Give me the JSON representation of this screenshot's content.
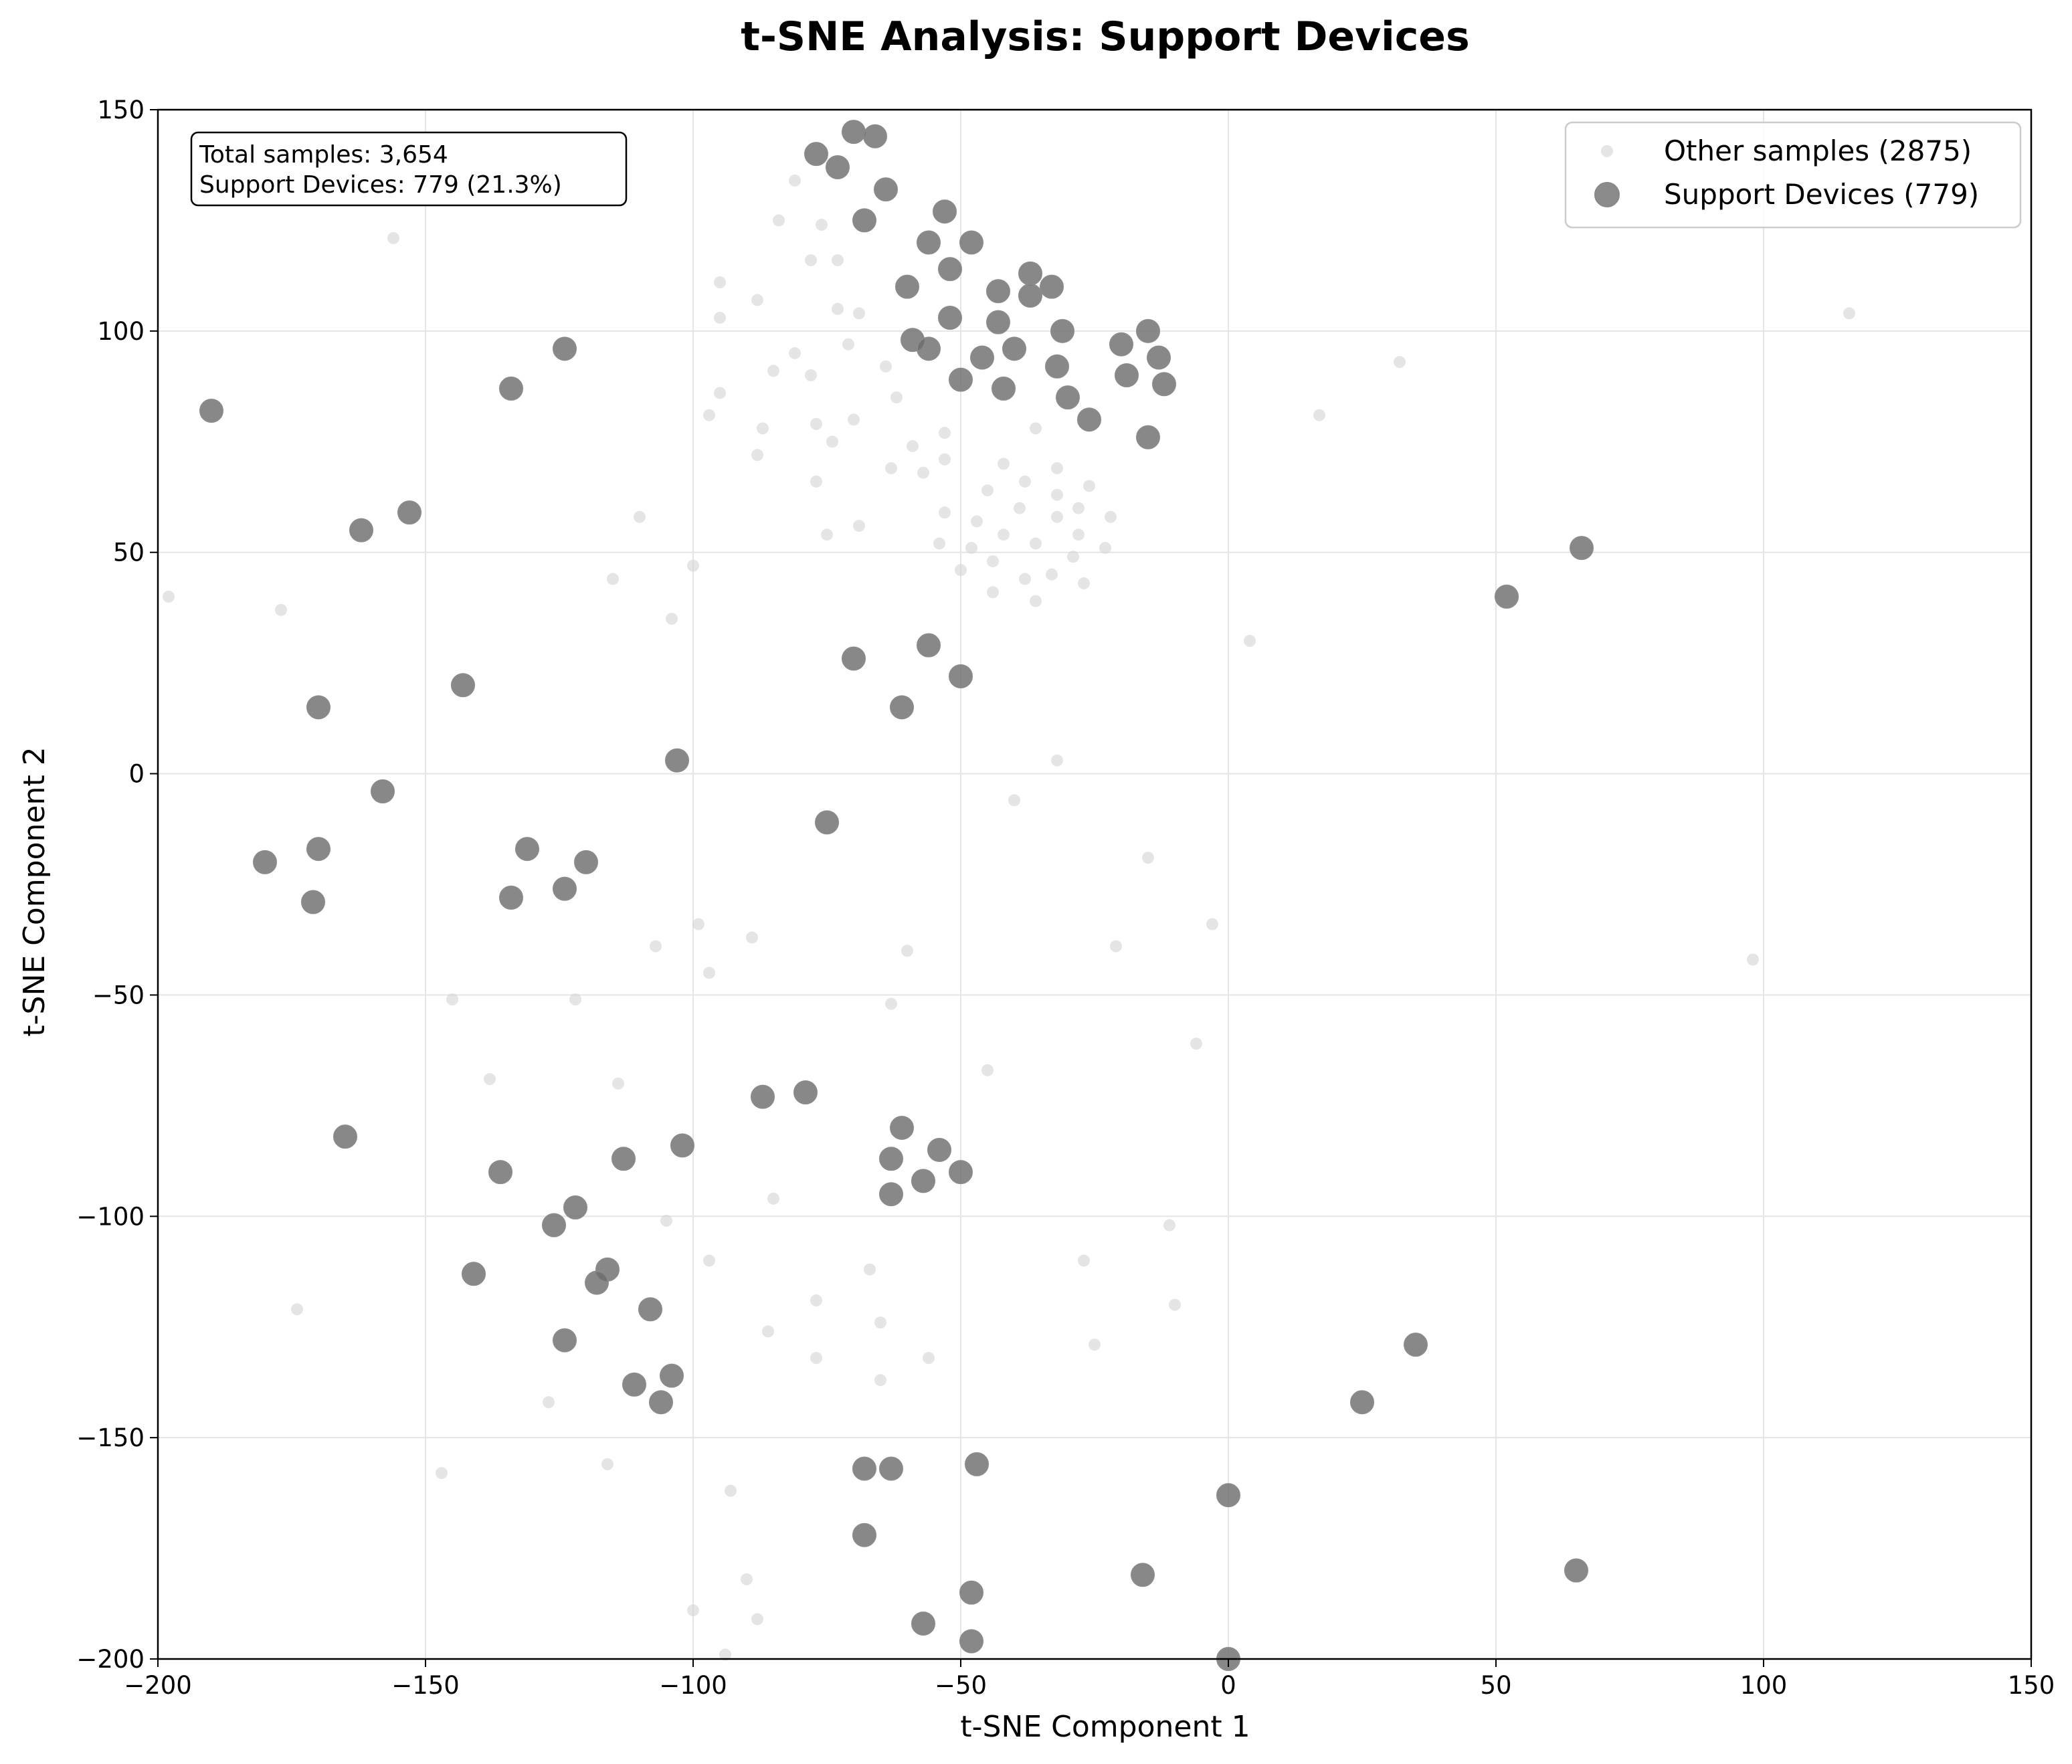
{
  "chart_data": {
    "type": "scatter",
    "title": "t-SNE Analysis: Support Devices",
    "xlabel": "t-SNE Component 1",
    "ylabel": "t-SNE Component 2",
    "xlim": [
      -200,
      150
    ],
    "ylim": [
      -200,
      150
    ],
    "xticks": [
      -200,
      -150,
      -100,
      -50,
      0,
      50,
      100,
      150
    ],
    "yticks": [
      -200,
      -150,
      -100,
      -50,
      0,
      50,
      100,
      150
    ],
    "grid": true,
    "legend_position": "top-right",
    "annotation": [
      "Total samples: 3,654",
      "Support Devices: 779 (21.3%)"
    ],
    "series": [
      {
        "name": "Other samples (2875)",
        "color": "#d3d3d3",
        "points": [
          [
            -81,
            134
          ],
          [
            -84,
            125
          ],
          [
            -76,
            124
          ],
          [
            -73,
            116
          ],
          [
            -78,
            116
          ],
          [
            -95,
            111
          ],
          [
            -88,
            107
          ],
          [
            -95,
            103
          ],
          [
            -73,
            105
          ],
          [
            -69,
            104
          ],
          [
            -71,
            97
          ],
          [
            -81,
            95
          ],
          [
            -85,
            91
          ],
          [
            -78,
            90
          ],
          [
            -64,
            92
          ],
          [
            -62,
            85
          ],
          [
            -95,
            86
          ],
          [
            -97,
            81
          ],
          [
            -87,
            78
          ],
          [
            -77,
            79
          ],
          [
            -70,
            80
          ],
          [
            -53,
            77
          ],
          [
            -59,
            74
          ],
          [
            -74,
            75
          ],
          [
            -88,
            72
          ],
          [
            -53,
            71
          ],
          [
            -63,
            69
          ],
          [
            -57,
            68
          ],
          [
            -77,
            66
          ],
          [
            -36,
            78
          ],
          [
            -32,
            69
          ],
          [
            -26,
            65
          ],
          [
            -38,
            66
          ],
          [
            -42,
            70
          ],
          [
            -45,
            64
          ],
          [
            -32,
            63
          ],
          [
            -28,
            60
          ],
          [
            -39,
            60
          ],
          [
            -53,
            59
          ],
          [
            -47,
            57
          ],
          [
            -32,
            58
          ],
          [
            -22,
            58
          ],
          [
            -75,
            54
          ],
          [
            -69,
            56
          ],
          [
            -28,
            54
          ],
          [
            -42,
            54
          ],
          [
            -48,
            51
          ],
          [
            -54,
            52
          ],
          [
            -36,
            52
          ],
          [
            -23,
            51
          ],
          [
            -29,
            49
          ],
          [
            -44,
            48
          ],
          [
            -50,
            46
          ],
          [
            -33,
            45
          ],
          [
            -38,
            44
          ],
          [
            -27,
            43
          ],
          [
            -44,
            41
          ],
          [
            -36,
            39
          ],
          [
            -156,
            121
          ],
          [
            -110,
            58
          ],
          [
            -115,
            44
          ],
          [
            -100,
            47
          ],
          [
            -104,
            35
          ],
          [
            -198,
            40
          ],
          [
            -177,
            37
          ],
          [
            -32,
            3
          ],
          [
            -40,
            -6
          ],
          [
            -15,
            -19
          ],
          [
            -99,
            -34
          ],
          [
            -107,
            -39
          ],
          [
            -89,
            -37
          ],
          [
            -97,
            -45
          ],
          [
            -60,
            -40
          ],
          [
            -21,
            -39
          ],
          [
            -3,
            -34
          ],
          [
            -145,
            -51
          ],
          [
            -122,
            -51
          ],
          [
            -63,
            -52
          ],
          [
            -6,
            -61
          ],
          [
            -45,
            -67
          ],
          [
            -138,
            -69
          ],
          [
            -114,
            -70
          ],
          [
            -85,
            -96
          ],
          [
            -105,
            -101
          ],
          [
            -11,
            -102
          ],
          [
            -97,
            -110
          ],
          [
            -67,
            -112
          ],
          [
            -27,
            -110
          ],
          [
            -174,
            -121
          ],
          [
            -77,
            -119
          ],
          [
            -10,
            -120
          ],
          [
            -65,
            -124
          ],
          [
            -86,
            -126
          ],
          [
            -25,
            -129
          ],
          [
            -77,
            -132
          ],
          [
            -56,
            -132
          ],
          [
            -127,
            -142
          ],
          [
            -65,
            -137
          ],
          [
            -147,
            -158
          ],
          [
            -116,
            -156
          ],
          [
            -93,
            -162
          ],
          [
            -90,
            -182
          ],
          [
            -88,
            -191
          ],
          [
            -100,
            -189
          ],
          [
            -94,
            -199
          ],
          [
            4,
            30
          ],
          [
            17,
            81
          ],
          [
            32,
            93
          ],
          [
            116,
            104
          ],
          [
            98,
            -42
          ]
        ]
      },
      {
        "name": "Support Devices (779)",
        "color": "#6e6e6e",
        "points": [
          [
            -77,
            140
          ],
          [
            -70,
            145
          ],
          [
            -66,
            144
          ],
          [
            -73,
            137
          ],
          [
            -64,
            132
          ],
          [
            -68,
            125
          ],
          [
            -53,
            127
          ],
          [
            -56,
            120
          ],
          [
            -48,
            120
          ],
          [
            -52,
            114
          ],
          [
            -60,
            110
          ],
          [
            -43,
            109
          ],
          [
            -37,
            113
          ],
          [
            -37,
            108
          ],
          [
            -33,
            110
          ],
          [
            -52,
            103
          ],
          [
            -43,
            102
          ],
          [
            -31,
            100
          ],
          [
            -59,
            98
          ],
          [
            -56,
            96
          ],
          [
            -46,
            94
          ],
          [
            -40,
            96
          ],
          [
            -50,
            89
          ],
          [
            -42,
            87
          ],
          [
            -32,
            92
          ],
          [
            -30,
            85
          ],
          [
            -26,
            80
          ],
          [
            -20,
            97
          ],
          [
            -19,
            90
          ],
          [
            -15,
            100
          ],
          [
            -13,
            94
          ],
          [
            -12,
            88
          ],
          [
            -15,
            76
          ],
          [
            -124,
            96
          ],
          [
            -134,
            87
          ],
          [
            -190,
            82
          ],
          [
            -162,
            55
          ],
          [
            -153,
            59
          ],
          [
            -143,
            20
          ],
          [
            -170,
            15
          ],
          [
            -103,
            3
          ],
          [
            -158,
            -4
          ],
          [
            -170,
            -17
          ],
          [
            -180,
            -20
          ],
          [
            -171,
            -29
          ],
          [
            -131,
            -17
          ],
          [
            -134,
            -28
          ],
          [
            -120,
            -20
          ],
          [
            -124,
            -26
          ],
          [
            -70,
            26
          ],
          [
            -56,
            29
          ],
          [
            -50,
            22
          ],
          [
            -61,
            15
          ],
          [
            -75,
            -11
          ],
          [
            -87,
            -73
          ],
          [
            -79,
            -72
          ],
          [
            -102,
            -84
          ],
          [
            -61,
            -80
          ],
          [
            -54,
            -85
          ],
          [
            -63,
            -87
          ],
          [
            -57,
            -92
          ],
          [
            -63,
            -95
          ],
          [
            -50,
            -90
          ],
          [
            -165,
            -82
          ],
          [
            -136,
            -90
          ],
          [
            -113,
            -87
          ],
          [
            -122,
            -98
          ],
          [
            -126,
            -102
          ],
          [
            -141,
            -113
          ],
          [
            -116,
            -112
          ],
          [
            -118,
            -115
          ],
          [
            -108,
            -121
          ],
          [
            -124,
            -128
          ],
          [
            -111,
            -138
          ],
          [
            -104,
            -136
          ],
          [
            -106,
            -142
          ],
          [
            -68,
            -157
          ],
          [
            -63,
            -157
          ],
          [
            -47,
            -156
          ],
          [
            -68,
            -172
          ],
          [
            -48,
            -185
          ],
          [
            -57,
            -192
          ],
          [
            -48,
            -196
          ],
          [
            0,
            -163
          ],
          [
            -16,
            -181
          ],
          [
            0,
            -200
          ],
          [
            25,
            -142
          ],
          [
            35,
            -129
          ],
          [
            52,
            40
          ],
          [
            66,
            51
          ],
          [
            65,
            -180
          ]
        ]
      }
    ]
  }
}
